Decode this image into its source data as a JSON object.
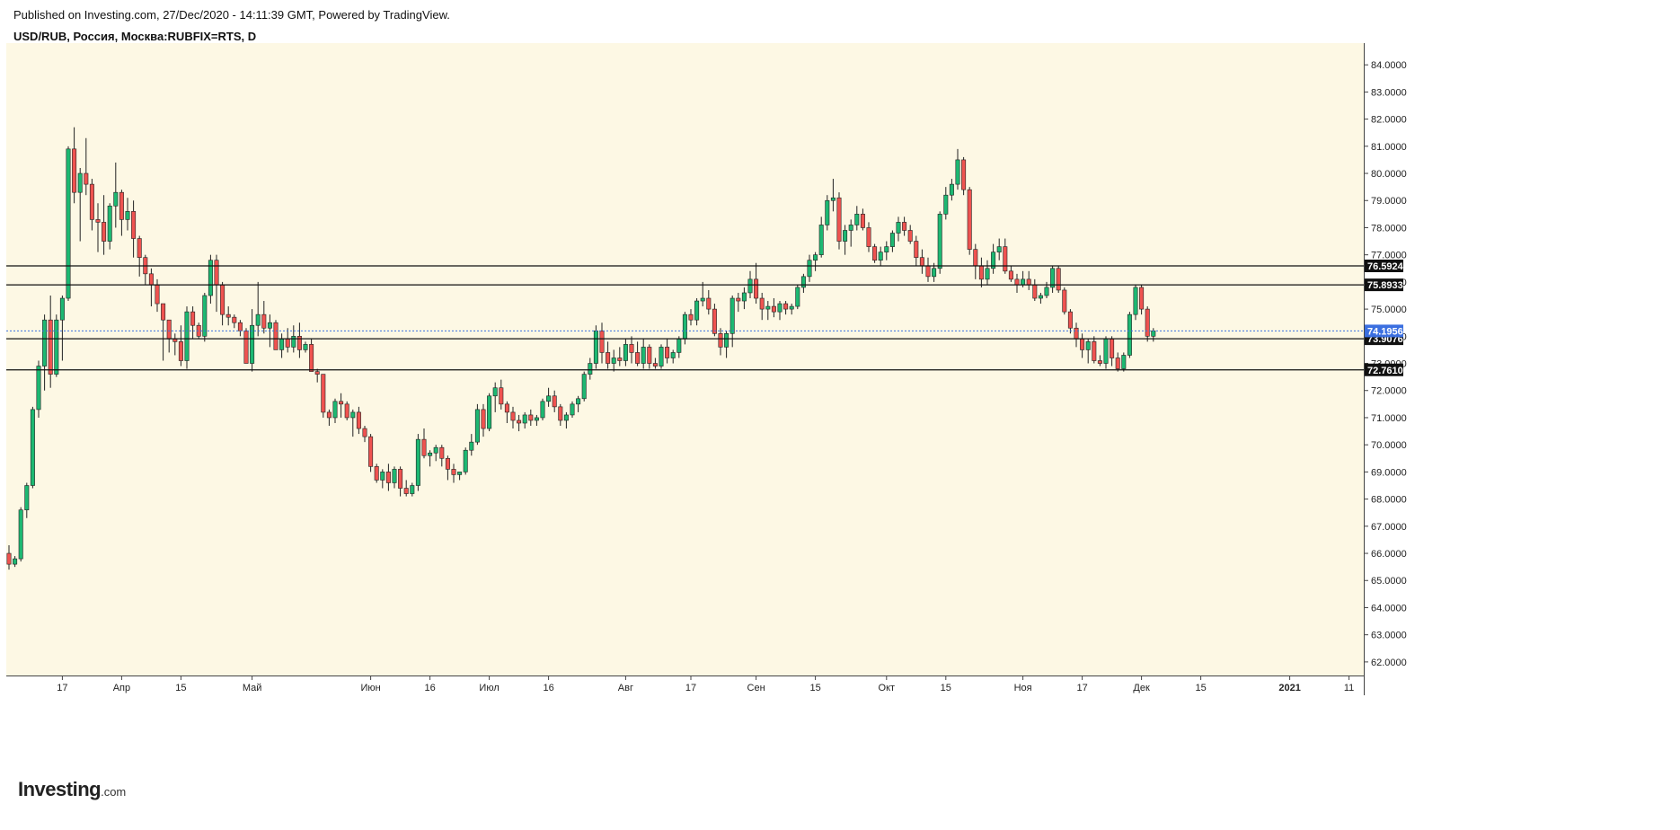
{
  "header": {
    "published": "Published on Investing.com, 27/Dec/2020 - 14:11:39 GMT, Powered by TradingView.",
    "symbol": "USD/RUB, Россия, Москва:RUBFIX=RTS, D"
  },
  "logo": {
    "name": "Investing",
    "suffix": ".com"
  },
  "colors": {
    "background": "#fdf8e4",
    "up": "#1db872",
    "down": "#ef5350",
    "wick": "#222222",
    "level_line": "#111111",
    "level_label_bg": "#111111",
    "current_price_bg": "#3b6fe0"
  },
  "chart_data": {
    "type": "candlestick",
    "timeframe": "D",
    "ylim": [
      61.5,
      84.8
    ],
    "y_ticks": [
      62,
      63,
      64,
      65,
      66,
      67,
      68,
      69,
      70,
      71,
      72,
      73,
      74,
      75,
      76,
      77,
      78,
      79,
      80,
      81,
      82,
      83,
      84
    ],
    "y_tick_labels": [
      "62.0000",
      "63.0000",
      "64.0000",
      "65.0000",
      "66.0000",
      "67.0000",
      "68.0000",
      "69.0000",
      "70.0000",
      "71.0000",
      "72.0000",
      "73.0000",
      "74.0000",
      "75.0000",
      "76.0000",
      "77.0000",
      "78.0000",
      "79.0000",
      "80.0000",
      "81.0000",
      "82.0000",
      "83.0000",
      "84.0000"
    ],
    "x_ticks": [
      {
        "label": "17",
        "bar": 9
      },
      {
        "label": "Апр",
        "bar": 19
      },
      {
        "label": "15",
        "bar": 29
      },
      {
        "label": "Май",
        "bar": 41
      },
      {
        "label": "Июн",
        "bar": 61
      },
      {
        "label": "16",
        "bar": 71
      },
      {
        "label": "Июл",
        "bar": 81
      },
      {
        "label": "16",
        "bar": 91
      },
      {
        "label": "Авг",
        "bar": 104
      },
      {
        "label": "17",
        "bar": 115
      },
      {
        "label": "Сен",
        "bar": 126
      },
      {
        "label": "15",
        "bar": 136
      },
      {
        "label": "Окт",
        "bar": 148
      },
      {
        "label": "15",
        "bar": 158
      },
      {
        "label": "Ноя",
        "bar": 171
      },
      {
        "label": "17",
        "bar": 181
      },
      {
        "label": "Дек",
        "bar": 191
      },
      {
        "label": "15",
        "bar": 201
      },
      {
        "label": "2021",
        "bar": 216,
        "bold": true
      },
      {
        "label": "11",
        "bar": 226
      }
    ],
    "horizontal_levels": [
      {
        "value": 76.5924,
        "label": "76.5924"
      },
      {
        "value": 75.8933,
        "label": "75.8933"
      },
      {
        "value": 73.9076,
        "label": "73.9076"
      },
      {
        "value": 72.761,
        "label": "72.7610"
      }
    ],
    "current_price": {
      "value": 74.1956,
      "label": "74.1956"
    },
    "ohlc": [
      [
        66.0,
        66.3,
        65.4,
        65.6
      ],
      [
        65.6,
        65.9,
        65.5,
        65.8
      ],
      [
        65.8,
        67.7,
        65.7,
        67.6
      ],
      [
        67.6,
        68.6,
        67.3,
        68.5
      ],
      [
        68.5,
        71.4,
        68.4,
        71.3
      ],
      [
        71.3,
        73.1,
        71.0,
        72.9
      ],
      [
        72.9,
        74.8,
        72.0,
        74.6
      ],
      [
        74.6,
        75.5,
        72.1,
        72.6
      ],
      [
        72.6,
        74.8,
        72.5,
        74.6
      ],
      [
        74.6,
        75.5,
        73.1,
        75.4
      ],
      [
        75.4,
        81.0,
        75.3,
        80.9
      ],
      [
        80.9,
        81.7,
        78.9,
        79.3
      ],
      [
        79.3,
        80.2,
        77.5,
        80.0
      ],
      [
        80.0,
        81.3,
        79.2,
        79.6
      ],
      [
        79.6,
        79.8,
        77.9,
        78.3
      ],
      [
        78.3,
        78.9,
        77.1,
        78.2
      ],
      [
        78.2,
        79.2,
        77.0,
        77.5
      ],
      [
        77.5,
        78.9,
        77.2,
        78.8
      ],
      [
        78.8,
        80.4,
        78.0,
        79.3
      ],
      [
        79.3,
        79.4,
        77.7,
        78.3
      ],
      [
        78.3,
        79.1,
        77.9,
        78.6
      ],
      [
        78.6,
        79.0,
        76.9,
        77.6
      ],
      [
        77.6,
        77.7,
        76.2,
        76.9
      ],
      [
        76.9,
        77.0,
        75.9,
        76.3
      ],
      [
        76.3,
        76.5,
        75.1,
        75.9
      ],
      [
        75.9,
        76.1,
        74.9,
        75.2
      ],
      [
        75.2,
        75.2,
        73.1,
        74.6
      ],
      [
        74.6,
        74.6,
        73.4,
        73.9
      ],
      [
        73.9,
        74.1,
        73.3,
        73.8
      ],
      [
        73.8,
        74.4,
        72.9,
        73.1
      ],
      [
        73.1,
        75.1,
        72.8,
        74.9
      ],
      [
        74.9,
        75.1,
        73.9,
        74.4
      ],
      [
        74.4,
        74.5,
        73.9,
        74.0
      ],
      [
        74.0,
        75.6,
        73.8,
        75.5
      ],
      [
        75.5,
        77.0,
        75.2,
        76.8
      ],
      [
        76.8,
        77.0,
        74.9,
        75.9
      ],
      [
        75.9,
        76.0,
        74.4,
        74.8
      ],
      [
        74.8,
        75.1,
        74.4,
        74.7
      ],
      [
        74.7,
        74.8,
        74.3,
        74.5
      ],
      [
        74.5,
        74.6,
        74.0,
        74.2
      ],
      [
        74.2,
        74.3,
        73.0,
        73.0
      ],
      [
        73.0,
        75.0,
        72.7,
        74.4
      ],
      [
        74.4,
        76.0,
        74.0,
        74.8
      ],
      [
        74.8,
        75.3,
        74.1,
        74.3
      ],
      [
        74.3,
        74.8,
        73.6,
        74.5
      ],
      [
        74.5,
        74.6,
        73.5,
        73.5
      ],
      [
        73.5,
        74.1,
        73.2,
        73.9
      ],
      [
        73.9,
        74.3,
        73.4,
        73.6
      ],
      [
        73.6,
        74.4,
        73.4,
        74.0
      ],
      [
        74.0,
        74.5,
        73.2,
        73.5
      ],
      [
        73.5,
        73.8,
        73.4,
        73.7
      ],
      [
        73.7,
        73.9,
        72.7,
        72.7
      ],
      [
        72.7,
        72.8,
        72.3,
        72.6
      ],
      [
        72.6,
        72.6,
        71.0,
        71.2
      ],
      [
        71.2,
        71.3,
        70.7,
        71.0
      ],
      [
        71.0,
        71.7,
        70.8,
        71.6
      ],
      [
        71.6,
        71.9,
        71.0,
        71.5
      ],
      [
        71.5,
        71.6,
        70.9,
        71.0
      ],
      [
        71.0,
        71.3,
        70.3,
        71.2
      ],
      [
        71.2,
        71.4,
        70.4,
        70.6
      ],
      [
        70.6,
        70.7,
        70.1,
        70.3
      ],
      [
        70.3,
        70.4,
        69.0,
        69.2
      ],
      [
        69.2,
        69.3,
        68.6,
        68.7
      ],
      [
        68.7,
        69.1,
        68.4,
        69.0
      ],
      [
        69.0,
        69.3,
        68.3,
        68.6
      ],
      [
        68.6,
        69.2,
        68.4,
        69.1
      ],
      [
        69.1,
        69.2,
        68.1,
        68.4
      ],
      [
        68.4,
        68.7,
        68.1,
        68.2
      ],
      [
        68.2,
        68.6,
        68.1,
        68.5
      ],
      [
        68.5,
        70.4,
        68.3,
        70.2
      ],
      [
        70.2,
        70.6,
        69.5,
        69.6
      ],
      [
        69.6,
        69.8,
        69.2,
        69.7
      ],
      [
        69.7,
        70.0,
        69.4,
        69.9
      ],
      [
        69.9,
        70.0,
        69.2,
        69.5
      ],
      [
        69.5,
        69.6,
        68.7,
        69.1
      ],
      [
        69.1,
        69.3,
        68.6,
        68.9
      ],
      [
        68.9,
        69.0,
        68.7,
        69.0
      ],
      [
        69.0,
        69.9,
        68.9,
        69.8
      ],
      [
        69.8,
        70.4,
        69.6,
        70.1
      ],
      [
        70.1,
        71.5,
        70.0,
        71.3
      ],
      [
        71.3,
        71.5,
        70.3,
        70.6
      ],
      [
        70.6,
        71.9,
        70.5,
        71.8
      ],
      [
        71.8,
        72.3,
        71.2,
        72.1
      ],
      [
        72.1,
        72.4,
        71.3,
        71.5
      ],
      [
        71.5,
        71.6,
        70.8,
        71.2
      ],
      [
        71.2,
        71.4,
        70.6,
        70.9
      ],
      [
        70.9,
        71.1,
        70.5,
        70.8
      ],
      [
        70.8,
        71.2,
        70.6,
        71.1
      ],
      [
        71.1,
        71.3,
        70.7,
        70.9
      ],
      [
        70.9,
        71.1,
        70.7,
        71.0
      ],
      [
        71.0,
        71.7,
        70.9,
        71.6
      ],
      [
        71.6,
        72.1,
        71.4,
        71.8
      ],
      [
        71.8,
        72.0,
        71.2,
        71.4
      ],
      [
        71.4,
        71.5,
        70.7,
        70.9
      ],
      [
        70.9,
        71.2,
        70.6,
        71.1
      ],
      [
        71.1,
        71.6,
        71.0,
        71.5
      ],
      [
        71.5,
        71.8,
        71.2,
        71.7
      ],
      [
        71.7,
        72.7,
        71.6,
        72.6
      ],
      [
        72.6,
        73.2,
        72.4,
        73.0
      ],
      [
        73.0,
        74.4,
        72.8,
        74.2
      ],
      [
        74.2,
        74.5,
        73.0,
        73.4
      ],
      [
        73.4,
        73.8,
        72.8,
        73.0
      ],
      [
        73.0,
        73.5,
        72.7,
        73.2
      ],
      [
        73.2,
        73.6,
        72.9,
        73.1
      ],
      [
        73.1,
        73.9,
        72.9,
        73.7
      ],
      [
        73.7,
        74.0,
        73.0,
        73.4
      ],
      [
        73.4,
        73.8,
        72.9,
        73.0
      ],
      [
        73.0,
        73.9,
        72.8,
        73.6
      ],
      [
        73.6,
        73.7,
        72.8,
        73.0
      ],
      [
        73.0,
        73.2,
        72.8,
        72.9
      ],
      [
        72.9,
        73.7,
        72.8,
        73.6
      ],
      [
        73.6,
        73.9,
        73.0,
        73.2
      ],
      [
        73.2,
        73.5,
        73.0,
        73.4
      ],
      [
        73.4,
        74.0,
        73.2,
        73.9
      ],
      [
        73.9,
        74.9,
        73.7,
        74.8
      ],
      [
        74.8,
        75.0,
        74.4,
        74.6
      ],
      [
        74.6,
        75.4,
        74.4,
        75.3
      ],
      [
        75.3,
        76.0,
        75.1,
        75.4
      ],
      [
        75.4,
        75.7,
        74.8,
        75.0
      ],
      [
        75.0,
        75.2,
        74.0,
        74.1
      ],
      [
        74.1,
        74.3,
        73.3,
        73.6
      ],
      [
        73.6,
        74.2,
        73.2,
        74.1
      ],
      [
        74.1,
        75.5,
        73.6,
        75.4
      ],
      [
        75.4,
        75.6,
        74.9,
        75.3
      ],
      [
        75.3,
        75.8,
        75.0,
        75.6
      ],
      [
        75.6,
        76.4,
        75.4,
        76.1
      ],
      [
        76.1,
        76.7,
        75.2,
        75.4
      ],
      [
        75.4,
        75.6,
        74.6,
        75.0
      ],
      [
        75.0,
        75.3,
        74.6,
        75.1
      ],
      [
        75.1,
        75.4,
        74.7,
        74.9
      ],
      [
        74.9,
        75.3,
        74.6,
        75.2
      ],
      [
        75.2,
        75.3,
        74.8,
        75.0
      ],
      [
        75.0,
        75.2,
        74.8,
        75.1
      ],
      [
        75.1,
        75.9,
        75.0,
        75.8
      ],
      [
        75.8,
        76.3,
        75.6,
        76.2
      ],
      [
        76.2,
        77.0,
        76.0,
        76.8
      ],
      [
        76.8,
        77.1,
        76.4,
        77.0
      ],
      [
        77.0,
        78.4,
        76.9,
        78.1
      ],
      [
        78.1,
        79.2,
        77.9,
        79.0
      ],
      [
        79.0,
        79.8,
        78.6,
        79.1
      ],
      [
        79.1,
        79.3,
        77.2,
        77.5
      ],
      [
        77.5,
        78.1,
        77.0,
        77.9
      ],
      [
        77.9,
        78.3,
        77.3,
        78.1
      ],
      [
        78.1,
        78.8,
        77.9,
        78.5
      ],
      [
        78.5,
        78.7,
        77.9,
        78.0
      ],
      [
        78.0,
        78.2,
        77.1,
        77.3
      ],
      [
        77.3,
        77.4,
        76.7,
        76.8
      ],
      [
        76.8,
        77.3,
        76.6,
        77.1
      ],
      [
        77.1,
        77.5,
        76.8,
        77.3
      ],
      [
        77.3,
        77.9,
        77.1,
        77.8
      ],
      [
        77.8,
        78.4,
        77.5,
        78.2
      ],
      [
        78.2,
        78.4,
        77.7,
        77.9
      ],
      [
        77.9,
        78.1,
        77.4,
        77.5
      ],
      [
        77.5,
        77.7,
        76.6,
        76.9
      ],
      [
        76.9,
        77.2,
        76.3,
        76.6
      ],
      [
        76.6,
        76.9,
        76.0,
        76.2
      ],
      [
        76.2,
        76.7,
        76.0,
        76.5
      ],
      [
        76.5,
        78.6,
        76.3,
        78.5
      ],
      [
        78.5,
        79.5,
        78.3,
        79.2
      ],
      [
        79.2,
        79.8,
        79.0,
        79.6
      ],
      [
        79.6,
        80.9,
        79.4,
        80.5
      ],
      [
        80.5,
        80.6,
        79.2,
        79.4
      ],
      [
        79.4,
        79.5,
        77.0,
        77.2
      ],
      [
        77.2,
        77.4,
        76.1,
        76.6
      ],
      [
        76.6,
        76.9,
        75.8,
        76.1
      ],
      [
        76.1,
        76.8,
        75.9,
        76.5
      ],
      [
        76.5,
        77.4,
        76.3,
        77.1
      ],
      [
        77.1,
        77.6,
        76.8,
        77.3
      ],
      [
        77.3,
        77.6,
        76.3,
        76.4
      ],
      [
        76.4,
        76.6,
        76.0,
        76.1
      ],
      [
        76.1,
        76.3,
        75.6,
        75.9
      ],
      [
        75.9,
        76.4,
        75.8,
        76.1
      ],
      [
        76.1,
        76.4,
        75.7,
        75.9
      ],
      [
        75.9,
        76.1,
        75.3,
        75.4
      ],
      [
        75.4,
        75.6,
        75.2,
        75.5
      ],
      [
        75.5,
        76.0,
        75.4,
        75.8
      ],
      [
        75.8,
        76.6,
        75.6,
        76.5
      ],
      [
        76.5,
        76.6,
        75.6,
        75.7
      ],
      [
        75.7,
        75.8,
        74.8,
        74.9
      ],
      [
        74.9,
        75.0,
        74.1,
        74.3
      ],
      [
        74.3,
        74.5,
        73.6,
        73.9
      ],
      [
        73.9,
        74.1,
        73.2,
        73.5
      ],
      [
        73.5,
        73.9,
        73.0,
        73.8
      ],
      [
        73.8,
        74.0,
        73.0,
        73.1
      ],
      [
        73.1,
        73.3,
        72.9,
        73.0
      ],
      [
        73.0,
        74.0,
        72.8,
        73.9
      ],
      [
        73.9,
        74.0,
        72.9,
        73.2
      ],
      [
        73.2,
        73.4,
        72.7,
        72.8
      ],
      [
        72.8,
        73.4,
        72.7,
        73.3
      ],
      [
        73.3,
        74.9,
        73.2,
        74.8
      ],
      [
        74.8,
        75.9,
        74.6,
        75.8
      ],
      [
        75.8,
        75.9,
        74.8,
        75.0
      ],
      [
        75.0,
        75.1,
        73.8,
        74.0
      ],
      [
        74.0,
        74.3,
        73.8,
        74.2
      ]
    ]
  }
}
